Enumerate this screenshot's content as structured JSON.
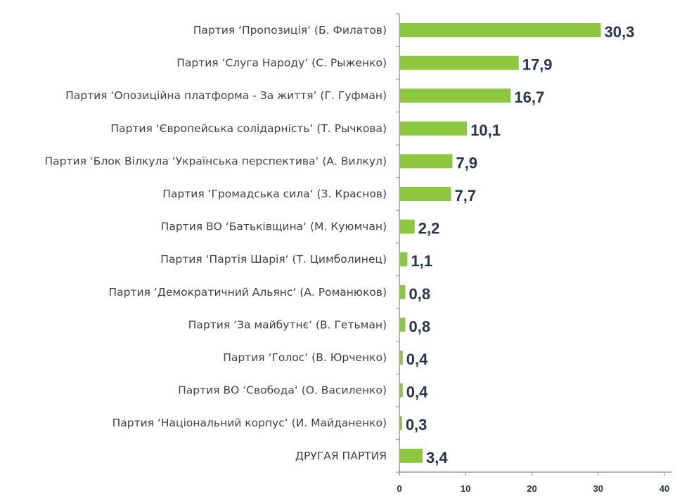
{
  "chart_data": {
    "type": "bar",
    "orientation": "horizontal",
    "categories": [
      "Партия ‘Пропозиція‘ (Б. Филатов)",
      "Партия ‘Слуга Народу‘ (С. Рыженко)",
      "Партия ‘Опозиційна платформа - За життя‘ (Г. Гуфман)",
      "Партия ‘Європейська солідарність‘ (Т. Рычкова)",
      "Партия ‘Блок Вілкула ‘Українська перспектива‘ (А. Вилкул)",
      "Партия ‘Громадська сила‘ (З. Краснов)",
      "Партия ВО ‘Батьківщина‘ (М. Куюмчан)",
      "Партия ‘Партія Шарія‘ (Т. Цимболинец)",
      "Партия ‘Демократичний Альянс‘ (А. Романюков)",
      "Партия ‘За майбутнє‘ (В. Гетьман)",
      "Партия ‘Голос‘ (В. Юрченко)",
      "Партия ВО ‘Свобода‘ (О. Василенко)",
      "Партия ‘Національний корпус‘ (И. Майданенко)",
      "ДРУГАЯ ПАРТИЯ"
    ],
    "values": [
      30.3,
      17.9,
      16.7,
      10.1,
      7.9,
      7.7,
      2.2,
      1.1,
      0.8,
      0.8,
      0.4,
      0.4,
      0.3,
      3.4
    ],
    "value_labels": [
      "30,3",
      "17,9",
      "16,7",
      "10,1",
      "7,9",
      "7,7",
      "2,2",
      "1,1",
      "0,8",
      "0,8",
      "0,4",
      "0,4",
      "0,3",
      "3,4"
    ],
    "xlim": [
      0,
      40
    ],
    "xticks": [
      "0",
      "10",
      "20",
      "30",
      "40"
    ],
    "grid": false,
    "bar_color": "#8dc63f",
    "title": "",
    "xlabel": "",
    "ylabel": ""
  }
}
